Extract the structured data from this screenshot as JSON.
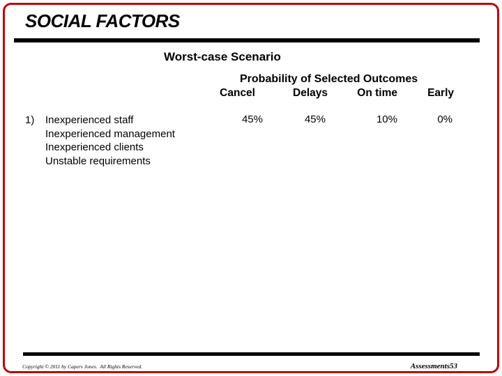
{
  "slide": {
    "title": "SOCIAL FACTORS",
    "subtitle": "Worst-case Scenario",
    "background_color": "#ffffff",
    "border_color": "#c00000",
    "rule_color": "#000000"
  },
  "outcomes": {
    "header": "Probability of Selected Outcomes",
    "columns": [
      "Cancel",
      "Delays",
      "On time",
      "Early"
    ],
    "row": {
      "values": [
        "45%",
        "45%",
        "10%",
        "0%"
      ]
    }
  },
  "factors": {
    "number": "1)",
    "items": [
      "Inexperienced staff",
      "Inexperienced management",
      "Inexperienced clients",
      "Unstable requirements"
    ]
  },
  "footer": {
    "copyright": "Copyright © 2011 by Capers Jones.  All Rights Reserved.",
    "page_label": "Assessments53"
  }
}
